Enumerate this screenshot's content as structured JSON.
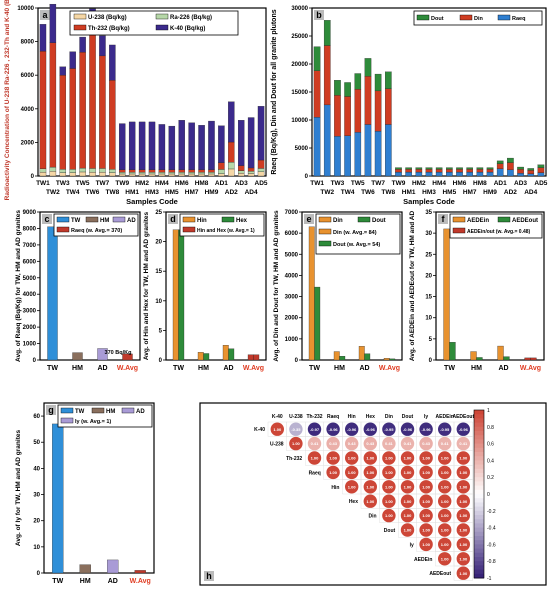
{
  "colors": {
    "u238": "#f5d7a6",
    "ra226": "#b6d7a8",
    "th232": "#cf3c22",
    "k40": "#3b2a8c",
    "dout": "#2e8b3a",
    "din": "#cf3c22",
    "raeq": "#2f7fd1",
    "tw": "#2f8fd8",
    "hm": "#8a6f5d",
    "ad": "#a99bd6",
    "wavg_bar": "#c0392b",
    "wavg_text": "#e03c22",
    "hex": "#e8922f",
    "hin": "#2e8b3a",
    "hbar": "#e8922f",
    "hgreen": "#2e8b3a",
    "aede_in": "#e8922f",
    "aede_out": "#2e8b3a",
    "aede_avg": "#c0392b",
    "iy": "#a99bd6"
  },
  "samples": [
    "TW1",
    "TW2",
    "TW3",
    "TW4",
    "TW5",
    "TW6",
    "TW7",
    "TW8",
    "TW9",
    "HM1",
    "HM2",
    "HM3",
    "HM4",
    "HM5",
    "HM6",
    "HM7",
    "HM8",
    "HM9",
    "AD1",
    "AD2",
    "AD3",
    "AD4",
    "AD5"
  ],
  "chart_data": [
    {
      "panel": "a",
      "type": "bar",
      "stacked": true,
      "xlabel": "Samples Code",
      "ylabel": "Radioactivity Concentration of U-238 Ra-226 , 232-Th and K-40 (Bq/kg)",
      "ylim": [
        0,
        10000
      ],
      "yticks": [
        0,
        2000,
        4000,
        6000,
        8000,
        10000
      ],
      "xtick_top": [
        "TW1",
        "TW3",
        "TW5",
        "TW7",
        "TW9",
        "HM2",
        "HM4",
        "HM6",
        "HM8",
        "AD1",
        "AD3",
        "AD5"
      ],
      "xtick_bottom": [
        "TW2",
        "TW4",
        "TW6",
        "TW8",
        "HM1",
        "HM3",
        "HM5",
        "HM7",
        "HM9",
        "AD2",
        "AD4"
      ],
      "legend": "top",
      "series": [
        {
          "name": "U-238 (Bq/kg)",
          "key": "u238",
          "values": [
            230,
            280,
            200,
            200,
            240,
            230,
            230,
            200,
            120,
            120,
            120,
            120,
            120,
            120,
            120,
            120,
            120,
            120,
            140,
            420,
            170,
            150,
            250
          ]
        },
        {
          "name": "Ra-226 (Bq/kg)",
          "key": "ra226",
          "values": [
            200,
            250,
            200,
            200,
            230,
            220,
            220,
            200,
            100,
            100,
            100,
            100,
            100,
            100,
            100,
            100,
            100,
            100,
            250,
            400,
            150,
            130,
            200
          ]
        },
        {
          "name": "Th-232 (Bq/kg)",
          "key": "th232",
          "values": [
            7000,
            7400,
            5600,
            6000,
            6900,
            8000,
            6700,
            5300,
            150,
            150,
            150,
            150,
            150,
            150,
            150,
            150,
            150,
            150,
            400,
            1200,
            300,
            200,
            500
          ]
        },
        {
          "name": "K-40 (Bq/kg)",
          "key": "k40",
          "values": [
            1600,
            2300,
            500,
            1000,
            900,
            1500,
            1200,
            2100,
            2750,
            2850,
            2850,
            2850,
            2700,
            2600,
            2950,
            2800,
            2650,
            2900,
            2200,
            2400,
            2700,
            3000,
            3200
          ]
        }
      ]
    },
    {
      "panel": "b",
      "type": "bar",
      "stacked": true,
      "xlabel": "Samples Code",
      "ylabel": "Raeq (Bq/Kg), Din and Dout for all granite plutons",
      "ylim": [
        0,
        30000
      ],
      "yticks": [
        0,
        5000,
        10000,
        15000,
        20000,
        25000,
        30000
      ],
      "xtick_top": [
        "TW1",
        "TW3",
        "TW5",
        "TW7",
        "TW9",
        "HM2",
        "HM4",
        "HM6",
        "HM8",
        "AD1",
        "AD3",
        "AD5"
      ],
      "xtick_bottom": [
        "TW2",
        "TW4",
        "TW6",
        "TW8",
        "HM1",
        "HM3",
        "HM5",
        "HM7",
        "HM9",
        "AD2",
        "AD4"
      ],
      "legend": "top-right",
      "series": [
        {
          "name": "Dout",
          "key": "dout",
          "values": [
            4300,
            4500,
            2700,
            2500,
            2800,
            3200,
            3000,
            3000,
            300,
            300,
            300,
            300,
            300,
            300,
            300,
            300,
            300,
            300,
            500,
            800,
            400,
            350,
            500
          ]
        },
        {
          "name": "Din",
          "key": "din",
          "values": [
            8300,
            10600,
            7300,
            7000,
            7700,
            8600,
            7200,
            6400,
            500,
            500,
            500,
            500,
            500,
            500,
            500,
            500,
            500,
            500,
            900,
            1300,
            700,
            600,
            900
          ]
        },
        {
          "name": "Raeq",
          "key": "raeq",
          "values": [
            10500,
            12700,
            7100,
            7200,
            7800,
            9200,
            8000,
            9200,
            700,
            700,
            700,
            700,
            700,
            700,
            700,
            700,
            700,
            700,
            1300,
            1100,
            500,
            400,
            600
          ]
        }
      ]
    },
    {
      "panel": "c",
      "type": "bar",
      "ylabel": "Avg. of Raeq (Bq/Kg) for TW, HM and AD granites",
      "ylim": [
        0,
        9000
      ],
      "yticks": [
        0,
        1000,
        2000,
        3000,
        4000,
        5000,
        6000,
        7000,
        8000,
        9000
      ],
      "categories": [
        "TW",
        "HM",
        "AD",
        "W.Avg"
      ],
      "values": [
        8100,
        450,
        700,
        370
      ],
      "data_label": "370 Bq/Kg",
      "legend": "top",
      "legend_items": [
        "TW",
        "HM",
        "AD",
        "Raeq (w. Avg.= 370)"
      ]
    },
    {
      "panel": "d",
      "type": "bar",
      "ylabel": "Avg. of Hin and Hex for TW, HM and AD granites",
      "ylim": [
        0,
        25
      ],
      "yticks": [
        0,
        5,
        10,
        15,
        20,
        25
      ],
      "categories": [
        "TW",
        "HM",
        "AD",
        "W.Avg"
      ],
      "series": [
        {
          "name": "Hin",
          "key": "hbar",
          "values": [
            22,
            1.3,
            2.5,
            0.9
          ]
        },
        {
          "name": "Hex",
          "key": "hgreen",
          "values": [
            22,
            1.1,
            1.9,
            0.9
          ]
        }
      ],
      "legend_items": [
        "Hin",
        "Hex",
        "Hin and Hex (w. Avg.= 1)"
      ]
    },
    {
      "panel": "e",
      "type": "bar",
      "ylabel": "Avg. of Din and Dout for TW, HM and AD granites",
      "ylim": [
        0,
        7000
      ],
      "yticks": [
        0,
        1000,
        2000,
        3000,
        4000,
        5000,
        6000,
        7000
      ],
      "categories": [
        "TW",
        "HM",
        "AD",
        "W.Avg"
      ],
      "series": [
        {
          "name": "Din",
          "key": "hbar",
          "values": [
            6300,
            400,
            650,
            84
          ]
        },
        {
          "name": "Dout",
          "key": "hgreen",
          "values": [
            3450,
            180,
            300,
            54
          ]
        }
      ],
      "legend_items": [
        "Din",
        "Dout",
        "Din (w. Avg.= 84)",
        "Dout (w. Avg.= 54)"
      ]
    },
    {
      "panel": "f",
      "type": "bar",
      "ylabel": "Avg. of AEDEin and AEDEout for TW, HM and AD",
      "ylim": [
        0,
        35
      ],
      "yticks": [
        0,
        5,
        10,
        15,
        20,
        25,
        30,
        35
      ],
      "categories": [
        "TW",
        "HM",
        "AD",
        "W.Avg"
      ],
      "series": [
        {
          "name": "AEDEin",
          "key": "aede_in",
          "values": [
            31,
            2,
            3.3,
            0.5
          ]
        },
        {
          "name": "AEDEout",
          "key": "aede_out",
          "values": [
            4.2,
            0.6,
            0.8,
            0.5
          ]
        }
      ],
      "legend_items": [
        "AEDEin",
        "AEDEout",
        "AEDEin/out (w. Avg.= 0.48)"
      ]
    },
    {
      "panel": "g",
      "type": "bar",
      "ylabel": "Avg. of Iy for TW, HM and AD granites",
      "ylim": [
        0,
        65
      ],
      "yticks": [
        0,
        10,
        20,
        30,
        40,
        50,
        60
      ],
      "categories": [
        "TW",
        "HM",
        "AD",
        "W.Avg"
      ],
      "values": [
        57,
        3.2,
        5,
        1
      ],
      "legend_items": [
        "TW",
        "HM",
        "AD",
        "Iy (w. Avg.= 1)"
      ]
    },
    {
      "panel": "h",
      "type": "heatmap",
      "labels": [
        "K-40",
        "U-238",
        "Th-232",
        "Raeq",
        "Hin",
        "Hex",
        "Din",
        "Dout",
        "Iy",
        "AEDEin",
        "AEDEout"
      ],
      "colorbar_ticks": [
        "1",
        "0.8",
        "0.6",
        "0.4",
        "0.2",
        "0",
        "-0.2",
        "-0.4",
        "-0.6",
        "-0.8",
        "-1"
      ],
      "matrix": [
        [
          1.0,
          -0.35,
          -0.97,
          -0.96,
          -0.96,
          -0.96,
          -0.95,
          -0.96,
          -0.96,
          -0.95,
          -0.96
        ],
        [
          null,
          1.0,
          0.41,
          0.43,
          0.43,
          0.43,
          0.41,
          0.41,
          0.43,
          0.41,
          0.41
        ],
        [
          null,
          null,
          1.0,
          1.0,
          1.0,
          1.0,
          1.0,
          1.0,
          1.0,
          1.0,
          1.0
        ],
        [
          null,
          null,
          null,
          1.0,
          1.0,
          1.0,
          1.0,
          1.0,
          1.0,
          1.0,
          1.0
        ],
        [
          null,
          null,
          null,
          null,
          1.0,
          1.0,
          1.0,
          1.0,
          1.0,
          1.0,
          1.0
        ],
        [
          null,
          null,
          null,
          null,
          null,
          1.0,
          1.0,
          1.0,
          1.0,
          1.0,
          1.0
        ],
        [
          null,
          null,
          null,
          null,
          null,
          null,
          1.0,
          1.0,
          1.0,
          1.0,
          1.0
        ],
        [
          null,
          null,
          null,
          null,
          null,
          null,
          null,
          1.0,
          1.0,
          1.0,
          1.0
        ],
        [
          null,
          null,
          null,
          null,
          null,
          null,
          null,
          null,
          1.0,
          1.0,
          1.0
        ],
        [
          null,
          null,
          null,
          null,
          null,
          null,
          null,
          null,
          null,
          1.0,
          1.0
        ],
        [
          null,
          null,
          null,
          null,
          null,
          null,
          null,
          null,
          null,
          null,
          1.0
        ]
      ]
    }
  ]
}
